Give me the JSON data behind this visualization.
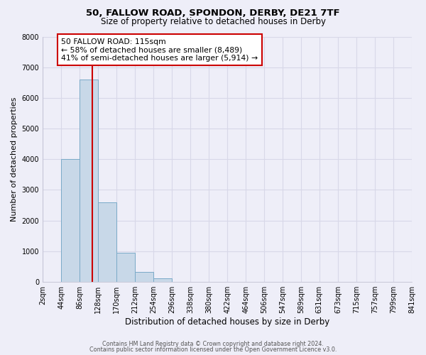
{
  "title_line1": "50, FALLOW ROAD, SPONDON, DERBY, DE21 7TF",
  "title_line2": "Size of property relative to detached houses in Derby",
  "xlabel": "Distribution of detached houses by size in Derby",
  "ylabel": "Number of detached properties",
  "bin_edges": [
    2,
    44,
    86,
    128,
    170,
    212,
    254,
    296,
    338,
    380,
    422,
    464,
    506,
    547,
    589,
    631,
    673,
    715,
    757,
    799,
    841
  ],
  "bin_values": [
    0,
    4000,
    6600,
    2600,
    950,
    330,
    115,
    0,
    0,
    0,
    0,
    0,
    0,
    0,
    0,
    0,
    0,
    0,
    0,
    0
  ],
  "bar_color": "#c8d8e8",
  "bar_edgecolor": "#7aaac8",
  "vline_x": 115,
  "vline_color": "#cc0000",
  "annotation_title": "50 FALLOW ROAD: 115sqm",
  "annotation_line1": "← 58% of detached houses are smaller (8,489)",
  "annotation_line2": "41% of semi-detached houses are larger (5,914) →",
  "annotation_box_edgecolor": "#cc0000",
  "ylim": [
    0,
    8000
  ],
  "yticks": [
    0,
    1000,
    2000,
    3000,
    4000,
    5000,
    6000,
    7000,
    8000
  ],
  "tick_labels": [
    "2sqm",
    "44sqm",
    "86sqm",
    "128sqm",
    "170sqm",
    "212sqm",
    "254sqm",
    "296sqm",
    "338sqm",
    "380sqm",
    "422sqm",
    "464sqm",
    "506sqm",
    "547sqm",
    "589sqm",
    "631sqm",
    "673sqm",
    "715sqm",
    "757sqm",
    "799sqm",
    "841sqm"
  ],
  "grid_color": "#d8d8e8",
  "bg_color": "#eeeef8",
  "footnote1": "Contains HM Land Registry data © Crown copyright and database right 2024.",
  "footnote2": "Contains public sector information licensed under the Open Government Licence v3.0."
}
